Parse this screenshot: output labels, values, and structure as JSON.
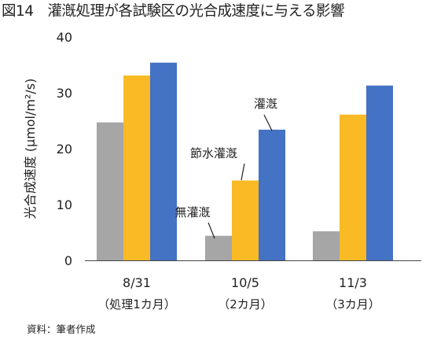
{
  "title": "図14　灌漑処理が各試験区の光合成速度に与える影響",
  "source": "資料：筆者作成",
  "colors": {
    "無灌漑": "#A6A6A6",
    "節水灌漑": "#F9BA25",
    "灌漑": "#4472C4",
    "axis": "#444444",
    "text": "#222222"
  },
  "chart_data": {
    "type": "bar",
    "ylabel": "光合成速度 (μmol/m²/s)",
    "ylim": [
      0,
      40
    ],
    "yticks": [
      "0",
      "10",
      "20",
      "30",
      "40"
    ],
    "ytick_values": [
      0,
      10,
      20,
      30,
      40
    ],
    "grid": false,
    "categories": [
      "8/31",
      "10/5",
      "11/3"
    ],
    "category_sublabels": [
      "（処理1カ月）",
      "（2カ月）",
      "（3カ月）"
    ],
    "series": [
      {
        "name": "無灌漑",
        "values": [
          24.7,
          4.4,
          5.2
        ]
      },
      {
        "name": "節水灌漑",
        "values": [
          33.1,
          14.3,
          26.1
        ]
      },
      {
        "name": "灌漑",
        "values": [
          35.4,
          23.4,
          31.3
        ]
      }
    ]
  }
}
